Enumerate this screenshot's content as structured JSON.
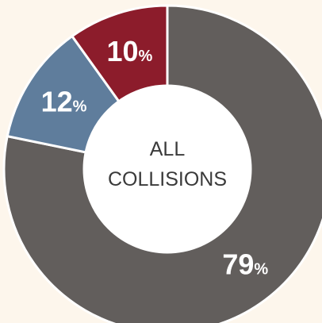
{
  "chart_data": {
    "type": "pie",
    "title": "",
    "center_label_lines": [
      "ALL",
      "COLLISIONS"
    ],
    "categories": [
      "",
      "",
      ""
    ],
    "slices": [
      {
        "value": 79,
        "value_text": "79",
        "suffix": "%",
        "color": "#625e5c"
      },
      {
        "value": 12,
        "value_text": "12",
        "suffix": "%",
        "color": "#5f7d9c"
      },
      {
        "value": 10,
        "value_text": "10",
        "suffix": "%",
        "color": "#8c1c2b"
      }
    ],
    "background_color": "#fdf6ec"
  }
}
